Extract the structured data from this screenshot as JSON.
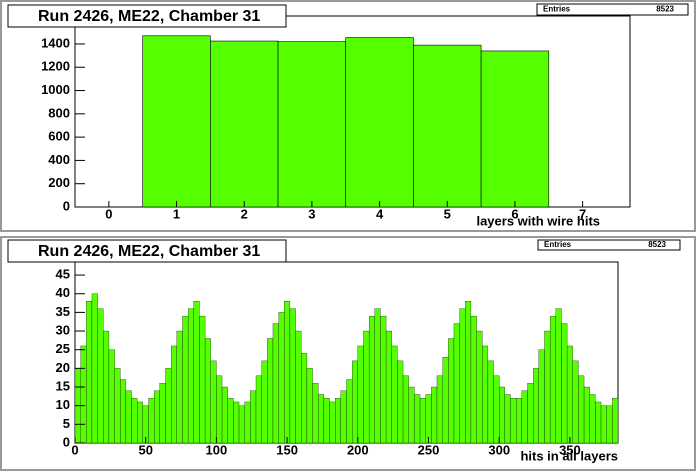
{
  "chart_data": [
    {
      "type": "histogram",
      "title": "Run 2426, ME22, Chamber 31",
      "stats_label": "Entries",
      "stats_value": 8523,
      "xlabel": "layers with wire hits",
      "color": "#55ff00",
      "bins": [
        0.5,
        1.5,
        2.5,
        3.5,
        4.5,
        5.5,
        6.5
      ],
      "values": [
        1470,
        1425,
        1420,
        1455,
        1390,
        1340
      ],
      "xlim": [
        -0.5,
        7.7
      ],
      "ylim": [
        0,
        1640
      ],
      "xticks": [
        0,
        1,
        2,
        3,
        4,
        5,
        6,
        7
      ],
      "yticks": [
        0,
        200,
        400,
        600,
        800,
        1000,
        1200,
        1400
      ]
    },
    {
      "type": "histogram",
      "title": "Run 2426, ME22, Chamber 31",
      "stats_label": "Entries",
      "stats_value": 8523,
      "xlabel": "hits in all layers",
      "color": "#55ff00",
      "bins": [
        0,
        4,
        8,
        12,
        16,
        20,
        24,
        28,
        32,
        36,
        40,
        44,
        48,
        52,
        56,
        60,
        64,
        68,
        72,
        76,
        80,
        84,
        88,
        92,
        96,
        100,
        104,
        108,
        112,
        116,
        120,
        124,
        128,
        132,
        136,
        140,
        144,
        148,
        152,
        156,
        160,
        164,
        168,
        172,
        176,
        180,
        184,
        188,
        192,
        196,
        200,
        204,
        208,
        212,
        216,
        220,
        224,
        228,
        232,
        236,
        240,
        244,
        248,
        252,
        256,
        260,
        264,
        268,
        272,
        276,
        280,
        284,
        288,
        292,
        296,
        300,
        304,
        308,
        312,
        316,
        320,
        324,
        328,
        332,
        336,
        340,
        344,
        348,
        352,
        356,
        360,
        364,
        368,
        372,
        376,
        380,
        384
      ],
      "values": [
        20,
        26,
        38,
        40,
        36,
        30,
        25,
        20,
        17,
        14,
        12,
        11,
        10,
        12,
        14,
        16,
        20,
        26,
        30,
        34,
        36,
        38,
        34,
        28,
        22,
        18,
        15,
        12,
        11,
        10,
        11,
        14,
        18,
        22,
        28,
        32,
        35,
        38,
        36,
        30,
        24,
        20,
        16,
        13,
        12,
        11,
        12,
        14,
        17,
        22,
        26,
        30,
        34,
        36,
        34,
        30,
        26,
        22,
        18,
        15,
        13,
        12,
        13,
        15,
        18,
        23,
        28,
        32,
        36,
        38,
        34,
        30,
        26,
        22,
        18,
        15,
        13,
        12,
        12,
        14,
        16,
        20,
        25,
        30,
        34,
        36,
        32,
        26,
        22,
        18,
        15,
        13,
        11,
        10,
        10,
        12
      ],
      "xlim": [
        0,
        384
      ],
      "ylim": [
        0,
        48.5
      ],
      "xticks": [
        0,
        50,
        100,
        150,
        200,
        250,
        300,
        350
      ],
      "yticks": [
        0,
        5,
        10,
        15,
        20,
        25,
        30,
        35,
        40,
        45
      ]
    }
  ]
}
